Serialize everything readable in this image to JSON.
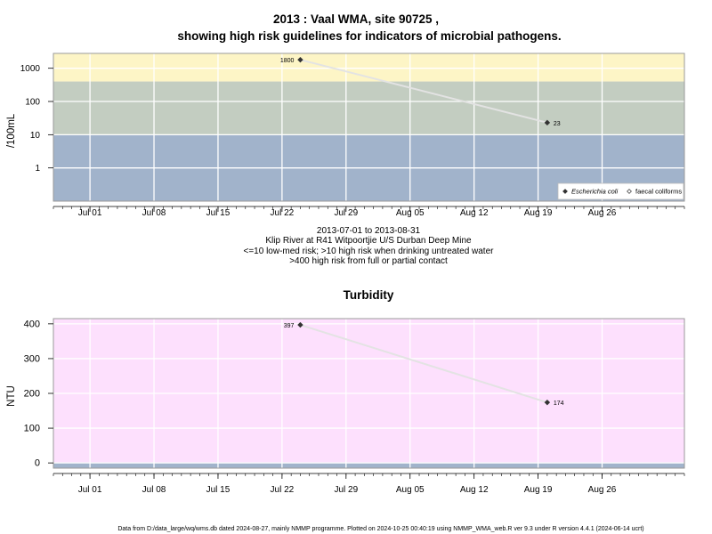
{
  "title_line1": "2013 : Vaal WMA, site 90725 ,",
  "title_line2": "showing high risk guidelines for indicators of microbial pathogens.",
  "date_range": "2013-07-01 to 2013-08-31",
  "site_desc": "Klip River at R41 Witpoortjie U/S Durban Deep Mine",
  "risk_line1": "<=10 low-med risk; >10 high risk when drinking untreated water",
  "risk_line2": ">400 high risk from full or partial contact",
  "footer": "Data from D:/data_large/wq/wms.db dated 2024-08-27, mainly NMMP programme. Plotted on 2024-10-25 00:40:19 using NMMP_WMA_web.R ver 9.3 under R version 4.4.1 (2024-06-14 ucrt)",
  "colors": {
    "band_low": "#a1b3cb",
    "band_mid": "#c3cdc1",
    "band_high": "#fdf5c6",
    "turb_bg": "#fde0fd",
    "turb_base": "#a1b3cb",
    "line": "#e3e3e3",
    "point": "#333333"
  },
  "chart_data": [
    {
      "type": "line",
      "title": "",
      "xlabel": "",
      "ylabel": "/100mL",
      "yscale": "log",
      "xlim": [
        "2013-06-27",
        "2013-09-04"
      ],
      "ylim": [
        0.1,
        2800
      ],
      "x_ticks": [
        "2013-07-01",
        "2013-07-08",
        "2013-07-15",
        "2013-07-22",
        "2013-07-29",
        "2013-08-05",
        "2013-08-12",
        "2013-08-19",
        "2013-08-26"
      ],
      "x_tick_labels": [
        "Jul 01",
        "Jul 08",
        "Jul 15",
        "Jul 22",
        "Jul 29",
        "Aug 05",
        "Aug 12",
        "Aug 19",
        "Aug 26"
      ],
      "y_ticks": [
        1,
        10,
        100,
        1000
      ],
      "y_tick_labels": [
        "1",
        "10",
        "100",
        "1000"
      ],
      "bands": [
        {
          "from": 0.1,
          "to": 10,
          "color": "#a1b3cb"
        },
        {
          "from": 10,
          "to": 400,
          "color": "#c3cdc1"
        },
        {
          "from": 400,
          "to": 2800,
          "color": "#fdf5c6"
        }
      ],
      "series": [
        {
          "name": "Escherichia coli",
          "x": [
            "2013-07-24",
            "2013-08-20"
          ],
          "y": [
            1800,
            23
          ],
          "labels": [
            "1800",
            "23"
          ]
        }
      ],
      "legend": {
        "position": "bottom-right",
        "entries": [
          {
            "label": "Escherichia coli",
            "marker": "filled-diamond",
            "italic": true
          },
          {
            "label": "faecal coliforms",
            "marker": "open-diamond",
            "italic": false
          }
        ]
      },
      "grid": true
    },
    {
      "type": "line",
      "title": "Turbidity",
      "xlabel": "",
      "ylabel": "NTU",
      "yscale": "linear",
      "xlim": [
        "2013-06-27",
        "2013-09-04"
      ],
      "ylim": [
        -15,
        415
      ],
      "x_ticks": [
        "2013-07-01",
        "2013-07-08",
        "2013-07-15",
        "2013-07-22",
        "2013-07-29",
        "2013-08-05",
        "2013-08-12",
        "2013-08-19",
        "2013-08-26"
      ],
      "x_tick_labels": [
        "Jul 01",
        "Jul 08",
        "Jul 15",
        "Jul 22",
        "Jul 29",
        "Aug 05",
        "Aug 12",
        "Aug 19",
        "Aug 26"
      ],
      "y_ticks": [
        0,
        100,
        200,
        300,
        400
      ],
      "y_tick_labels": [
        "0",
        "100",
        "200",
        "300",
        "400"
      ],
      "bands": [
        {
          "from": -15,
          "to": 2,
          "color": "#a1b3cb"
        },
        {
          "from": 2,
          "to": 415,
          "color": "#fde0fd"
        }
      ],
      "series": [
        {
          "x": [
            "2013-07-24",
            "2013-08-20"
          ],
          "y": [
            397,
            174
          ],
          "labels": [
            "397",
            "174"
          ]
        }
      ],
      "grid": true
    }
  ]
}
